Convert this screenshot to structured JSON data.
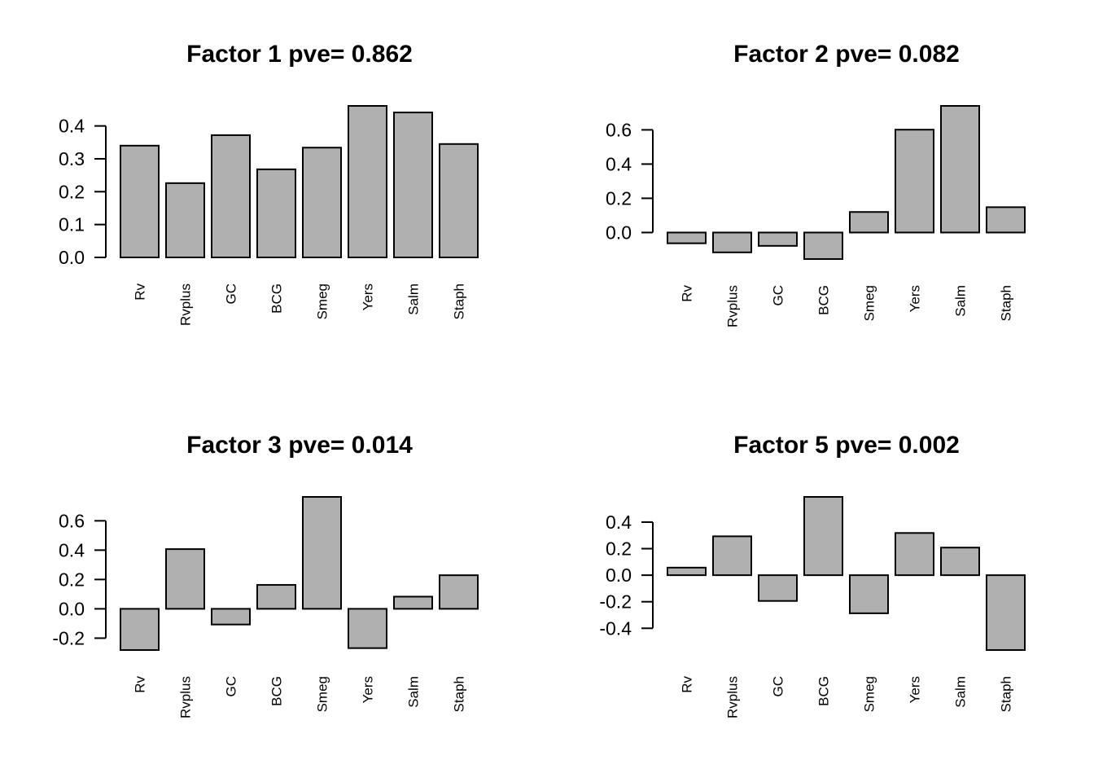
{
  "chart_data": [
    {
      "type": "bar",
      "title": "Factor 1 pve= 0.862",
      "categories": [
        "Rv",
        "Rvplus",
        "GC",
        "BCG",
        "Smeg",
        "Yers",
        "Salm",
        "Staph"
      ],
      "values": [
        0.34,
        0.226,
        0.372,
        0.268,
        0.334,
        0.461,
        0.441,
        0.345
      ],
      "yticks": [
        0.0,
        0.1,
        0.2,
        0.3,
        0.4
      ],
      "ytick_labels": [
        "0.0",
        "0.1",
        "0.2",
        "0.3",
        "0.4"
      ],
      "ylim": [
        0,
        0.461
      ],
      "bar_color": "#b0b0b0"
    },
    {
      "type": "bar",
      "title": "Factor 2 pve= 0.082",
      "categories": [
        "Rv",
        "Rvplus",
        "GC",
        "BCG",
        "Smeg",
        "Yers",
        "Salm",
        "Staph"
      ],
      "values": [
        -0.063,
        -0.116,
        -0.078,
        -0.155,
        0.12,
        0.601,
        0.74,
        0.148
      ],
      "yticks": [
        0.0,
        0.2,
        0.4,
        0.6
      ],
      "ytick_labels": [
        "0.0",
        "0.2",
        "0.4",
        "0.6"
      ],
      "ylim": [
        -0.155,
        0.74
      ],
      "bar_color": "#b0b0b0"
    },
    {
      "type": "bar",
      "title": "Factor 3 pve= 0.014",
      "categories": [
        "Rv",
        "Rvplus",
        "GC",
        "BCG",
        "Smeg",
        "Yers",
        "Salm",
        "Staph"
      ],
      "values": [
        -0.281,
        0.407,
        -0.107,
        0.163,
        0.763,
        -0.268,
        0.083,
        0.229
      ],
      "yticks": [
        -0.2,
        0.0,
        0.2,
        0.4,
        0.6
      ],
      "ytick_labels": [
        "-0.2",
        "0.0",
        "0.2",
        "0.4",
        "0.6"
      ],
      "ylim": [
        -0.281,
        0.763
      ],
      "bar_color": "#b0b0b0"
    },
    {
      "type": "bar",
      "title": "Factor 5 pve= 0.002",
      "categories": [
        "Rv",
        "Rvplus",
        "GC",
        "BCG",
        "Smeg",
        "Yers",
        "Salm",
        "Staph"
      ],
      "values": [
        0.057,
        0.293,
        -0.194,
        0.59,
        -0.287,
        0.318,
        0.208,
        -0.564
      ],
      "yticks": [
        -0.4,
        -0.2,
        0.0,
        0.2,
        0.4
      ],
      "ytick_labels": [
        "-0.4",
        "-0.2",
        "0.0",
        "0.2",
        "0.4"
      ],
      "ylim": [
        -0.564,
        0.59
      ],
      "bar_color": "#b0b0b0"
    }
  ]
}
